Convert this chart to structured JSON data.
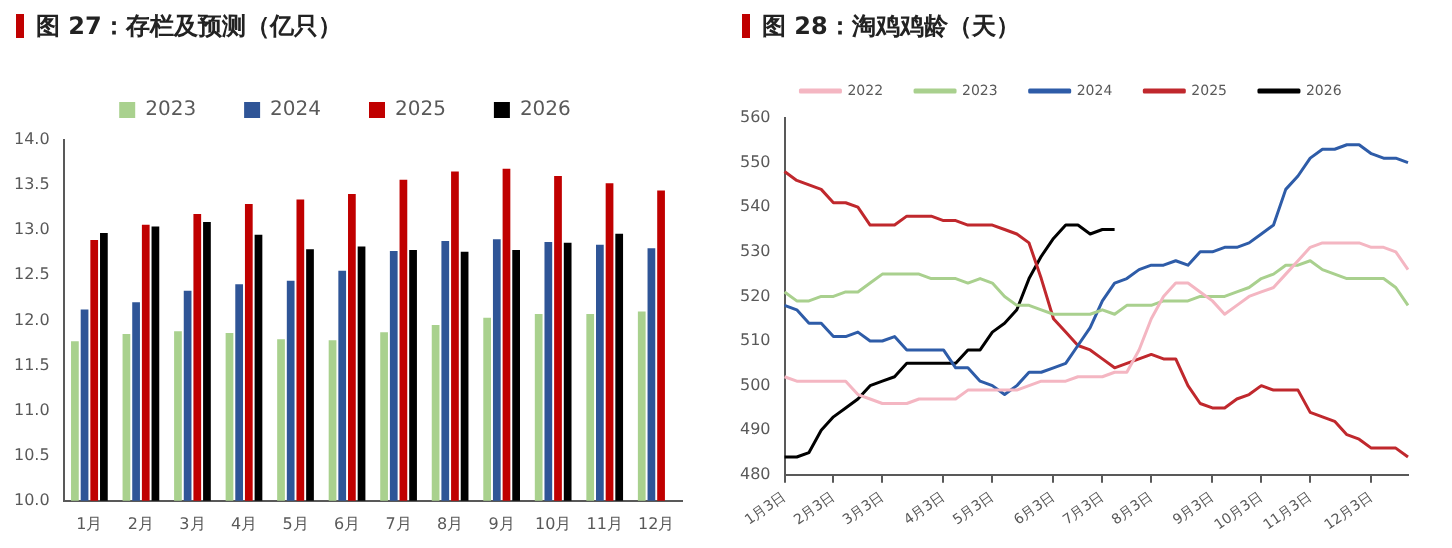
{
  "chart_data": [
    {
      "type": "bar",
      "title": "图 27：存栏及预测（亿只）",
      "categories": [
        "1月",
        "2月",
        "3月",
        "4月",
        "5月",
        "6月",
        "7月",
        "8月",
        "9月",
        "10月",
        "11月",
        "12月"
      ],
      "series": [
        {
          "name": "2023",
          "color": "#a9d18e",
          "values": [
            11.77,
            11.85,
            11.88,
            11.86,
            11.79,
            11.78,
            11.87,
            11.95,
            12.03,
            12.07,
            12.07,
            12.1
          ]
        },
        {
          "name": "2024",
          "color": "#2f5597",
          "values": [
            12.12,
            12.2,
            12.33,
            12.4,
            12.44,
            12.55,
            12.77,
            12.88,
            12.9,
            12.87,
            12.84,
            12.8
          ]
        },
        {
          "name": "2025",
          "color": "#c00000",
          "values": [
            12.89,
            13.06,
            13.18,
            13.29,
            13.34,
            13.4,
            13.56,
            13.65,
            13.68,
            13.6,
            13.52,
            13.44
          ]
        },
        {
          "name": "2026",
          "color": "#000000",
          "values": [
            12.97,
            13.04,
            13.09,
            12.95,
            12.79,
            12.82,
            12.78,
            12.76,
            12.78,
            12.86,
            12.96,
            null
          ]
        }
      ],
      "ylim": [
        10,
        14
      ],
      "yticks": [
        {
          "value": 10,
          "label": "10.0"
        },
        10.5,
        {
          "value": 11,
          "label": "11.0"
        },
        11.5,
        {
          "value": 12,
          "label": "12.0"
        },
        12.5,
        {
          "value": 13,
          "label": "13.0"
        },
        13.5,
        {
          "value": 14,
          "label": "14.0"
        }
      ],
      "grid": false,
      "legend": "top"
    },
    {
      "type": "line",
      "title": "图 28：淘鸡鸡龄（天）",
      "categories": [
        "1月3日",
        null,
        null,
        null,
        "2月3日",
        null,
        null,
        null,
        "3月3日",
        null,
        null,
        null,
        null,
        "4月3日",
        null,
        null,
        null,
        "5月3日",
        null,
        null,
        null,
        null,
        "6月3日",
        null,
        null,
        null,
        "7月3日",
        null,
        null,
        null,
        "8月3日",
        null,
        null,
        null,
        null,
        "9月3日",
        null,
        null,
        null,
        "10月3日",
        null,
        null,
        null,
        "11月3日",
        null,
        null,
        null,
        null,
        "12月3日",
        null,
        null,
        null
      ],
      "series": [
        {
          "name": "2022",
          "color": "#f4b6c2",
          "values": [
            502,
            501,
            501,
            501,
            501,
            501,
            498,
            497,
            496,
            496,
            496,
            497,
            497,
            497,
            497,
            499,
            499,
            499,
            499,
            499,
            500,
            501,
            501,
            501,
            502,
            502,
            502,
            503,
            503,
            508,
            515,
            520,
            523,
            523,
            521,
            519,
            516,
            518,
            520,
            521,
            522,
            525,
            528,
            531,
            532,
            532,
            532,
            532,
            531,
            531,
            530,
            526
          ]
        },
        {
          "name": "2023",
          "color": "#a9d08e",
          "values": [
            521,
            519,
            519,
            520,
            520,
            521,
            521,
            523,
            525,
            525,
            525,
            525,
            524,
            524,
            524,
            523,
            524,
            523,
            520,
            518,
            518,
            517,
            516,
            516,
            516,
            516,
            517,
            516,
            518,
            518,
            518,
            519,
            519,
            519,
            520,
            520,
            520,
            521,
            522,
            524,
            525,
            527,
            527,
            528,
            526,
            525,
            524,
            524,
            524,
            524,
            522,
            518
          ]
        },
        {
          "name": "2024",
          "color": "#2e5ca8",
          "values": [
            518,
            517,
            514,
            514,
            511,
            511,
            512,
            510,
            510,
            511,
            508,
            508,
            508,
            508,
            504,
            504,
            501,
            500,
            498,
            500,
            503,
            503,
            504,
            505,
            509,
            513,
            519,
            523,
            524,
            526,
            527,
            527,
            528,
            527,
            530,
            530,
            531,
            531,
            532,
            534,
            536,
            544,
            547,
            551,
            553,
            553,
            554,
            554,
            552,
            551,
            551,
            550
          ]
        },
        {
          "name": "2025",
          "color": "#c0282d",
          "values": [
            548,
            546,
            545,
            544,
            541,
            541,
            540,
            536,
            536,
            536,
            538,
            538,
            538,
            537,
            537,
            536,
            536,
            536,
            535,
            534,
            532,
            524,
            515,
            512,
            509,
            508,
            506,
            504,
            505,
            506,
            507,
            506,
            506,
            500,
            496,
            495,
            495,
            497,
            498,
            500,
            499,
            499,
            499,
            494,
            493,
            492,
            489,
            488,
            486,
            486,
            486,
            484
          ]
        },
        {
          "name": "2026",
          "color": "#000000",
          "values": [
            484,
            484,
            485,
            490,
            493,
            495,
            497,
            500,
            501,
            502,
            505,
            505,
            505,
            505,
            505,
            508,
            508,
            512,
            514,
            517,
            524,
            529,
            533,
            536,
            536,
            534,
            535,
            535,
            null,
            null,
            null,
            null,
            null,
            null,
            null,
            null,
            null,
            null,
            null,
            null,
            null,
            null,
            null,
            null,
            null,
            null,
            null,
            null,
            null,
            null,
            null,
            null
          ]
        }
      ],
      "ylim": [
        480,
        560
      ],
      "yticks": [
        480,
        490,
        500,
        510,
        520,
        530,
        540,
        550,
        560
      ],
      "grid": false,
      "legend": "top",
      "marker": "none"
    }
  ]
}
